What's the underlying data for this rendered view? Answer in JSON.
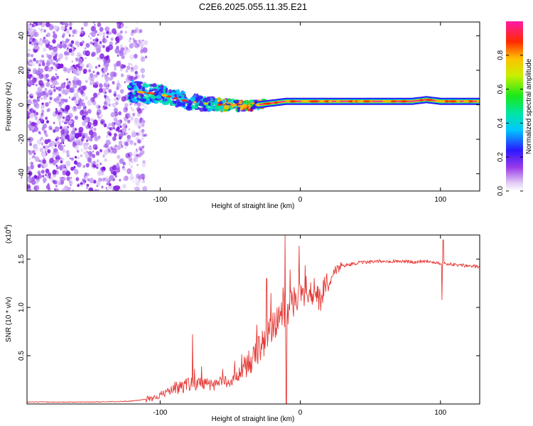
{
  "chart_data": [
    {
      "type": "heatmap",
      "title": "C2E6.2025.055.11.35.E21",
      "xlabel": "Height of straight line (km)",
      "ylabel": "Frequency (Hz)",
      "xlim": [
        -195,
        128
      ],
      "ylim": [
        -50,
        48
      ],
      "xticks": [
        -100,
        0,
        100
      ],
      "xtick_labels": [
        "-100",
        "0",
        "100"
      ],
      "yticks": [
        -40,
        -20,
        0,
        20,
        40
      ],
      "ytick_labels": [
        "-40",
        "-20",
        "0",
        "20",
        "40"
      ],
      "colorbar": {
        "label": "Normalized spectral amplitude",
        "range": [
          0,
          1
        ],
        "ticks": [
          0.0,
          0.2,
          0.4,
          0.6,
          0.8
        ],
        "tick_labels": [
          "0.0",
          "0.2",
          "0.4",
          "0.6",
          "0.8"
        ]
      },
      "ridge": {
        "x": [
          -122,
          -110,
          -100,
          -90,
          -80,
          -70,
          -60,
          -50,
          -40,
          -30,
          -20,
          -10,
          0,
          20,
          40,
          60,
          80,
          90,
          100,
          110,
          128
        ],
        "y": [
          8,
          7,
          6,
          4,
          2,
          1,
          0,
          0,
          -1,
          0,
          1,
          2,
          2,
          2,
          2,
          2,
          2,
          3,
          2,
          2,
          2
        ]
      }
    },
    {
      "type": "line",
      "xlabel": "Height of straight line (km)",
      "ylabel": "SNR (10 * v/v)",
      "ylabel_scale": "(x10",
      "ylabel_exponent": "4",
      "ylabel_scale_close": ")",
      "xlim": [
        -195,
        128
      ],
      "ylim": [
        0,
        1.75
      ],
      "xticks": [
        -100,
        0,
        100
      ],
      "xtick_labels": [
        "-100",
        "0",
        "100"
      ],
      "yticks": [
        0.5,
        1.0,
        1.5
      ],
      "ytick_labels": [
        "0.5",
        "1.0",
        "1.5"
      ],
      "series": [
        {
          "name": "SNR",
          "color": "#e53935",
          "x": [
            -195,
            -170,
            -150,
            -130,
            -120,
            -110,
            -100,
            -90,
            -80,
            -70,
            -60,
            -50,
            -45,
            -40,
            -35,
            -30,
            -25,
            -20,
            -15,
            -10,
            -5,
            0,
            5,
            10,
            15,
            20,
            25,
            30,
            40,
            50,
            60,
            70,
            80,
            90,
            95,
            100,
            105,
            110,
            120,
            128
          ],
          "y": [
            0.02,
            0.02,
            0.02,
            0.025,
            0.03,
            0.05,
            0.09,
            0.16,
            0.2,
            0.22,
            0.2,
            0.25,
            0.3,
            0.35,
            0.42,
            0.55,
            0.65,
            0.8,
            0.9,
            0.95,
            1.05,
            1.12,
            1.2,
            1.15,
            1.12,
            1.25,
            1.38,
            1.43,
            1.46,
            1.47,
            1.48,
            1.48,
            1.47,
            1.48,
            1.47,
            1.46,
            1.45,
            1.44,
            1.43,
            1.42
          ]
        }
      ],
      "spikes": [
        {
          "x": -77,
          "y": 0.72
        },
        {
          "x": -24,
          "y": 1.3
        },
        {
          "x": -11,
          "y": 1.75
        },
        {
          "x": -10,
          "y": 0.0
        },
        {
          "x": 101,
          "y": 1.08
        },
        {
          "x": 102,
          "y": 1.7
        }
      ]
    }
  ]
}
